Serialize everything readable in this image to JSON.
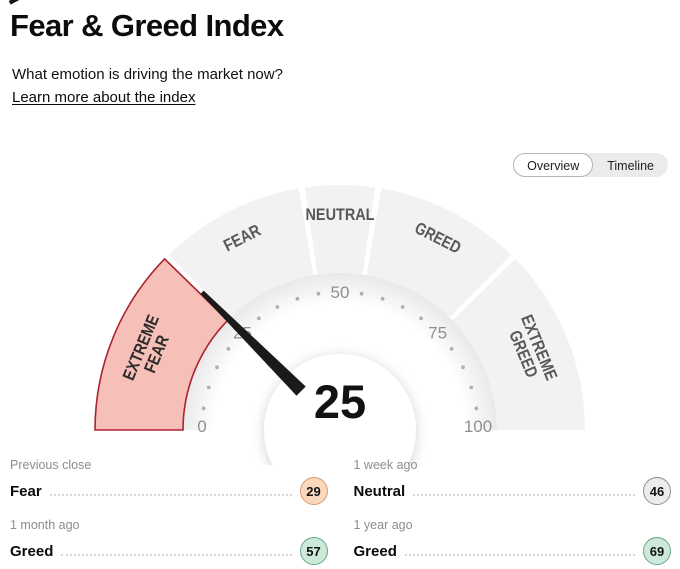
{
  "header": {
    "title": "Fear & Greed Index",
    "subtitle": "What emotion is driving the market now?",
    "link": "Learn more about the index"
  },
  "view_toggle": {
    "options": [
      "Overview",
      "Timeline"
    ],
    "selected": "Overview"
  },
  "chart_data": {
    "type": "gauge",
    "title": "Fear & Greed Index",
    "value": 25,
    "value_label": "25",
    "min": 0,
    "max": 100,
    "tick_step": 5,
    "labeled_ticks": [
      0,
      25,
      50,
      75,
      100
    ],
    "segments": [
      {
        "label": "EXTREME FEAR",
        "lines": [
          "EXTREME",
          "FEAR"
        ],
        "from": 0,
        "to": 25,
        "active": true,
        "fill": "#f6c0b8",
        "stroke": "#ab2330",
        "text_color": "#2b2b2b"
      },
      {
        "label": "FEAR",
        "lines": [
          "FEAR"
        ],
        "from": 25,
        "to": 45,
        "active": false
      },
      {
        "label": "NEUTRAL",
        "lines": [
          "NEUTRAL"
        ],
        "from": 45,
        "to": 55,
        "active": false
      },
      {
        "label": "GREED",
        "lines": [
          "GREED"
        ],
        "from": 55,
        "to": 75,
        "active": false
      },
      {
        "label": "EXTREME GREED",
        "lines": [
          "EXTREME",
          "GREED"
        ],
        "from": 75,
        "to": 100,
        "active": false
      }
    ],
    "inactive_fill": "#f2f2f3",
    "inactive_text_color": "#57585a",
    "tick_dot_color": "#b0b0b0",
    "tick_label_color": "#8f8f8f",
    "needle_color": "#1a1a1a",
    "value_color": "#121212"
  },
  "history": [
    {
      "period": "Previous close",
      "label": "Fear",
      "value": "29",
      "badge_fill": "#f9d8bd",
      "badge_border": "#d89b72"
    },
    {
      "period": "1 week ago",
      "label": "Neutral",
      "value": "46",
      "badge_fill": "#ececec",
      "badge_border": "#8f8f8f"
    },
    {
      "period": "1 month ago",
      "label": "Greed",
      "value": "57",
      "badge_fill": "#cde9da",
      "badge_border": "#65a88b"
    },
    {
      "period": "1 year ago",
      "label": "Greed",
      "value": "69",
      "badge_fill": "#cde9da",
      "badge_border": "#65a88b"
    }
  ]
}
